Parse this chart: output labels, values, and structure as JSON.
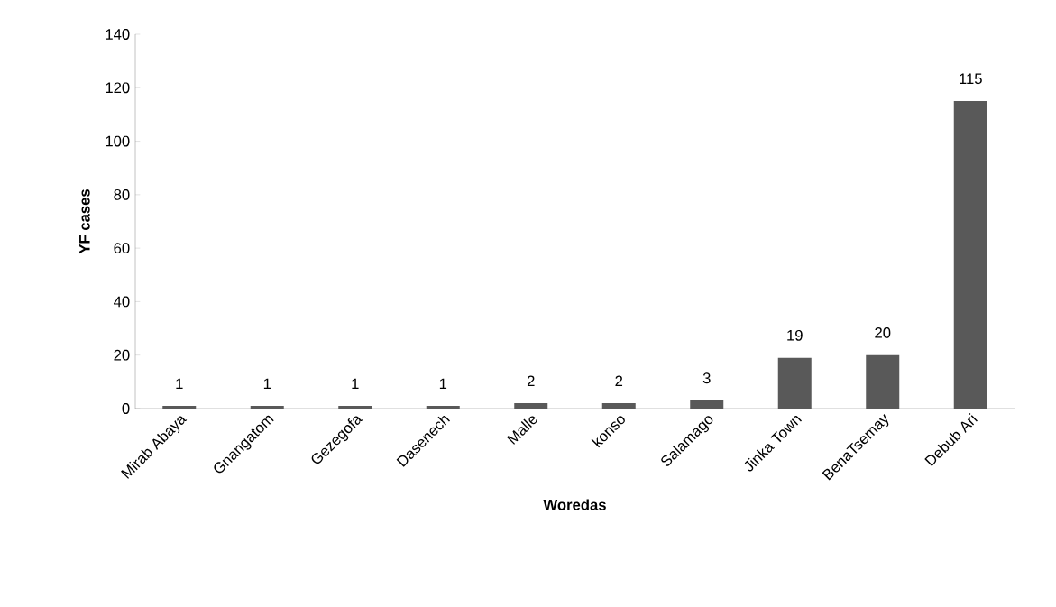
{
  "chart_data": {
    "type": "bar",
    "xlabel": "Woredas",
    "ylabel": "YF cases",
    "categories": [
      "Mirab Abaya",
      "Gnangatom",
      "Gezegofa",
      "Dasenech",
      "Malle",
      "konso",
      "Salamago",
      "Jinka Town",
      "BenaTsemay",
      "Debub Ari"
    ],
    "values": [
      1,
      1,
      1,
      1,
      2,
      2,
      3,
      19,
      20,
      115
    ],
    "color": "#595959",
    "ylim": [
      0,
      140
    ],
    "yticks": [
      0,
      20,
      40,
      60,
      80,
      100,
      120,
      140
    ],
    "data_labels": true
  }
}
